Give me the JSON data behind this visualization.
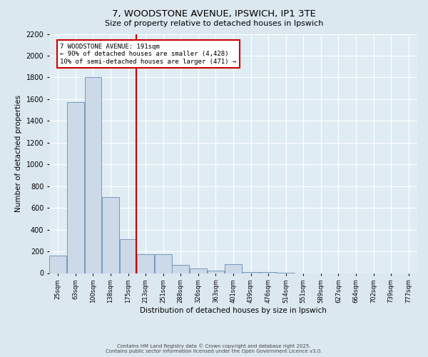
{
  "title_line1": "7, WOODSTONE AVENUE, IPSWICH, IP1 3TE",
  "title_line2": "Size of property relative to detached houses in Ipswich",
  "xlabel": "Distribution of detached houses by size in Ipswich",
  "ylabel": "Number of detached properties",
  "bar_labels": [
    "25sqm",
    "63sqm",
    "100sqm",
    "138sqm",
    "175sqm",
    "213sqm",
    "251sqm",
    "288sqm",
    "326sqm",
    "363sqm",
    "401sqm",
    "439sqm",
    "476sqm",
    "514sqm",
    "551sqm",
    "589sqm",
    "627sqm",
    "664sqm",
    "702sqm",
    "739sqm",
    "777sqm"
  ],
  "bar_values": [
    160,
    1570,
    1800,
    700,
    310,
    175,
    175,
    75,
    40,
    20,
    80,
    10,
    10,
    5,
    0,
    0,
    0,
    0,
    0,
    0,
    0
  ],
  "bar_color": "#ccd9e8",
  "bar_edge_color": "#7799bb",
  "property_line_x": 4.45,
  "property_line_color": "#cc0000",
  "ylim_max": 2200,
  "yticks": [
    0,
    200,
    400,
    600,
    800,
    1000,
    1200,
    1400,
    1600,
    1800,
    2000,
    2200
  ],
  "annotation_text": "7 WOODSTONE AVENUE: 191sqm\n← 90% of detached houses are smaller (4,428)\n10% of semi-detached houses are larger (471) →",
  "annotation_box_facecolor": "#ffffff",
  "annotation_box_edgecolor": "#cc0000",
  "footer_line1": "Contains HM Land Registry data © Crown copyright and database right 2025.",
  "footer_line2": "Contains public sector information licensed under the Open Government Licence v3.0.",
  "bg_color": "#dce8f0",
  "plot_bg_color": "#e0ecf4",
  "grid_color": "#ffffff",
  "title1_fontsize": 9.5,
  "title2_fontsize": 8,
  "xlabel_fontsize": 7.5,
  "ylabel_fontsize": 7.5,
  "tick_fontsize": 7,
  "xtick_fontsize": 6,
  "footer_fontsize": 5,
  "annot_fontsize": 6.5
}
